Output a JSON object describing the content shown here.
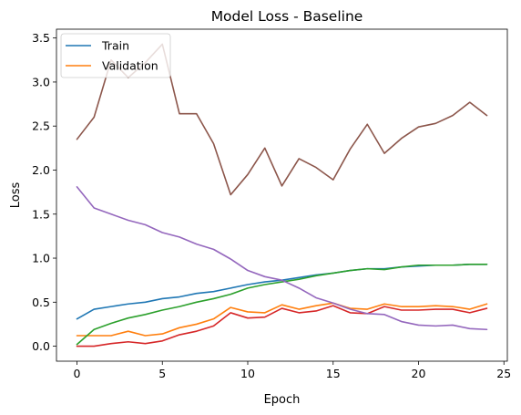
{
  "chart_data": {
    "type": "line",
    "title": "Model Loss - Baseline",
    "xlabel": "Epoch",
    "ylabel": "Loss",
    "xlim": [
      -1.2,
      25.2
    ],
    "ylim": [
      -0.17,
      3.6
    ],
    "xticks": [
      0,
      5,
      10,
      15,
      20,
      25
    ],
    "yticks": [
      0.0,
      0.5,
      1.0,
      1.5,
      2.0,
      2.5,
      3.0,
      3.5
    ],
    "grid": false,
    "legend_position": "top-left",
    "x": [
      0,
      1,
      2,
      3,
      4,
      5,
      6,
      7,
      8,
      9,
      10,
      11,
      12,
      13,
      14,
      15,
      16,
      17,
      18,
      19,
      20,
      21,
      22,
      23,
      24
    ],
    "series": [
      {
        "name": "Train",
        "color": "#1f77b4",
        "in_legend": true,
        "values": [
          0.31,
          0.42,
          0.45,
          0.48,
          0.5,
          0.54,
          0.56,
          0.6,
          0.62,
          0.66,
          0.7,
          0.73,
          0.75,
          0.78,
          0.81,
          0.83,
          0.86,
          0.88,
          0.88,
          0.9,
          0.91,
          0.92,
          0.92,
          0.93,
          0.93
        ]
      },
      {
        "name": "Validation",
        "color": "#ff7f0e",
        "in_legend": true,
        "values": [
          0.12,
          0.12,
          0.12,
          0.17,
          0.12,
          0.14,
          0.21,
          0.25,
          0.31,
          0.44,
          0.39,
          0.38,
          0.47,
          0.42,
          0.46,
          0.49,
          0.43,
          0.42,
          0.48,
          0.45,
          0.45,
          0.46,
          0.45,
          0.42,
          0.48
        ]
      },
      {
        "name": "",
        "color": "#2ca02c",
        "in_legend": false,
        "values": [
          0.02,
          0.19,
          0.26,
          0.32,
          0.36,
          0.41,
          0.45,
          0.5,
          0.54,
          0.59,
          0.66,
          0.7,
          0.73,
          0.76,
          0.8,
          0.83,
          0.86,
          0.88,
          0.87,
          0.9,
          0.92,
          0.92,
          0.92,
          0.93,
          0.93
        ]
      },
      {
        "name": "",
        "color": "#d62728",
        "in_legend": false,
        "values": [
          0.0,
          0.0,
          0.03,
          0.05,
          0.03,
          0.06,
          0.13,
          0.17,
          0.23,
          0.38,
          0.32,
          0.33,
          0.43,
          0.38,
          0.4,
          0.46,
          0.38,
          0.37,
          0.45,
          0.41,
          0.41,
          0.42,
          0.42,
          0.38,
          0.43
        ]
      },
      {
        "name": "",
        "color": "#9467bd",
        "in_legend": false,
        "values": [
          1.81,
          1.57,
          1.5,
          1.43,
          1.38,
          1.29,
          1.24,
          1.16,
          1.1,
          0.99,
          0.86,
          0.79,
          0.75,
          0.66,
          0.55,
          0.49,
          0.42,
          0.37,
          0.36,
          0.28,
          0.24,
          0.23,
          0.24,
          0.2,
          0.19
        ]
      },
      {
        "name": "",
        "color": "#8c564b",
        "in_legend": false,
        "values": [
          2.35,
          2.6,
          3.25,
          3.05,
          3.22,
          3.43,
          2.64,
          2.64,
          2.3,
          1.72,
          1.95,
          2.25,
          1.82,
          2.13,
          2.03,
          1.89,
          2.24,
          2.52,
          2.19,
          2.36,
          2.49,
          2.53,
          2.62,
          2.77,
          2.62
        ]
      }
    ]
  }
}
